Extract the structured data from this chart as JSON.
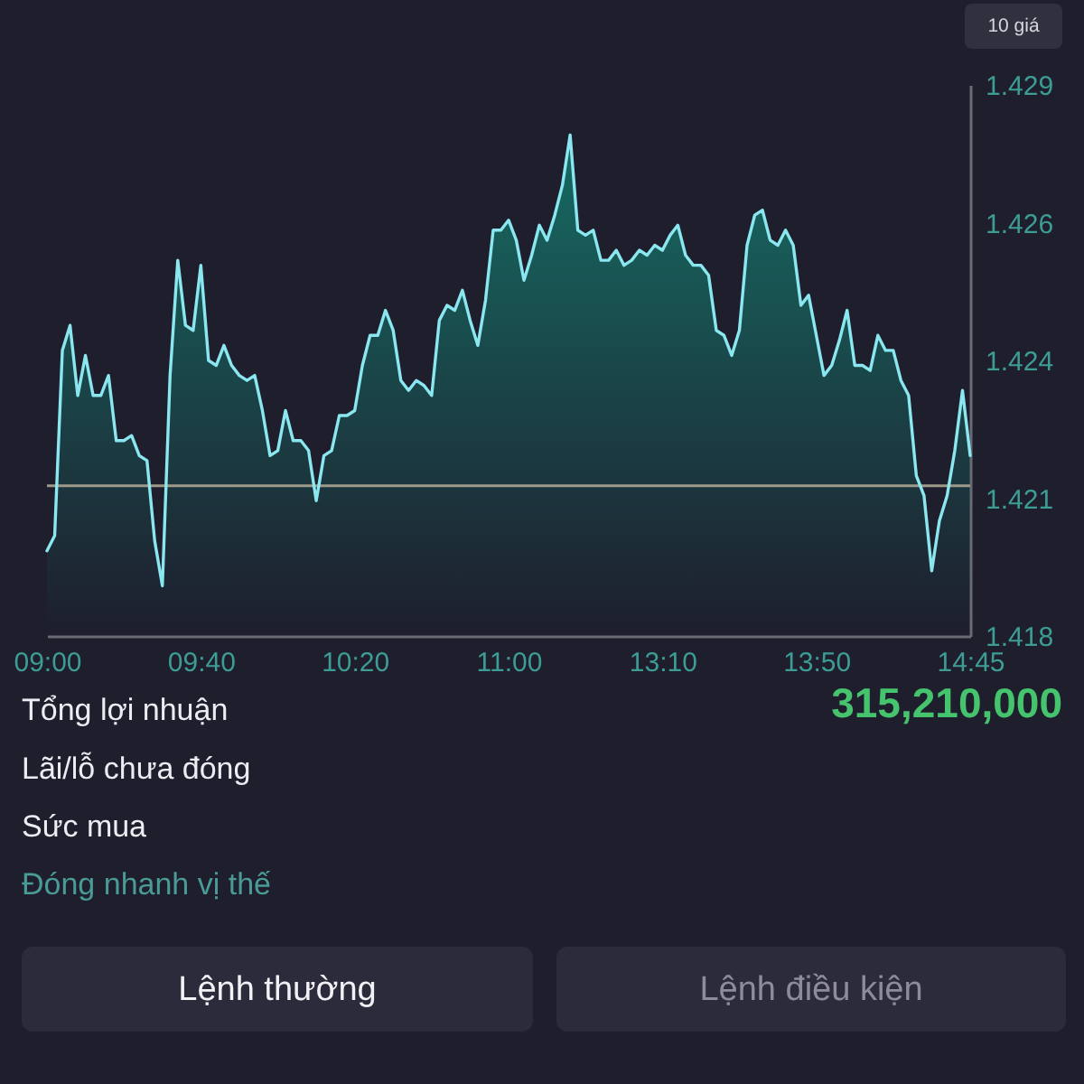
{
  "chart_data": [
    {
      "type": "area",
      "categories": [
        "09:00",
        null,
        null,
        null,
        null,
        null,
        null,
        null,
        null,
        null,
        null,
        null,
        null,
        null,
        null,
        null,
        null,
        null,
        null,
        null,
        "09:40",
        null,
        null,
        null,
        null,
        null,
        null,
        null,
        null,
        null,
        null,
        null,
        null,
        null,
        null,
        null,
        null,
        null,
        null,
        null,
        "10:20",
        null,
        null,
        null,
        null,
        null,
        null,
        null,
        null,
        null,
        null,
        null,
        null,
        null,
        null,
        null,
        null,
        null,
        null,
        null,
        "11:00",
        null,
        null,
        null,
        null,
        null,
        null,
        null,
        null,
        null,
        null,
        null,
        null,
        null,
        null,
        null,
        null,
        null,
        null,
        null,
        "13:10",
        null,
        null,
        null,
        null,
        null,
        null,
        null,
        null,
        null,
        null,
        null,
        null,
        null,
        null,
        null,
        null,
        null,
        null,
        null,
        "13:50",
        null,
        null,
        null,
        null,
        null,
        null,
        null,
        null,
        null,
        null,
        null,
        null,
        null,
        null,
        null,
        null,
        null,
        null,
        null,
        "14:45"
      ],
      "series": [
        {
          "color": "#8ae6ef",
          "values": [
            1.4197,
            1.42,
            1.4237,
            1.4242,
            1.4228,
            1.4236,
            1.4228,
            1.4228,
            1.4232,
            1.4219,
            1.4219,
            1.422,
            1.4216,
            1.4215,
            1.4199,
            1.419,
            1.4232,
            1.4255,
            1.4242,
            1.4241,
            1.4254,
            1.4235,
            1.4234,
            1.4238,
            1.4234,
            1.4232,
            1.4231,
            1.4232,
            1.4225,
            1.4216,
            1.4217,
            1.4225,
            1.4219,
            1.4219,
            1.4217,
            1.4207,
            1.4216,
            1.4217,
            1.4224,
            1.4224,
            1.4225,
            1.4234,
            1.424,
            1.424,
            1.4245,
            1.4241,
            1.4231,
            1.4229,
            1.4231,
            1.423,
            1.4228,
            1.4243,
            1.4246,
            1.4245,
            1.4249,
            1.4243,
            1.4238,
            1.4247,
            1.4261,
            1.4261,
            1.4263,
            1.4259,
            1.4251,
            1.4256,
            1.4262,
            1.4259,
            1.4264,
            1.427,
            1.428,
            1.4261,
            1.426,
            1.4261,
            1.4255,
            1.4255,
            1.4257,
            1.4254,
            1.4255,
            1.4257,
            1.4256,
            1.4258,
            1.4257,
            1.426,
            1.4262,
            1.4256,
            1.4254,
            1.4254,
            1.4252,
            1.4241,
            1.424,
            1.4236,
            1.4241,
            1.4258,
            1.4264,
            1.4265,
            1.4259,
            1.4258,
            1.4261,
            1.4258,
            1.4246,
            1.4248,
            1.424,
            1.4232,
            1.4234,
            1.4239,
            1.4245,
            1.4234,
            1.4234,
            1.4233,
            1.424,
            1.4237,
            1.4237,
            1.4231,
            1.4228,
            1.4212,
            1.4208,
            1.4193,
            1.4203,
            1.4208,
            1.4217,
            1.4229,
            1.4216
          ]
        }
      ],
      "ylim": [
        1.418,
        1.429
      ],
      "yticks": [
        1.418,
        {
          "value": 1.42075,
          "label": "1.421"
        },
        {
          "value": 1.4235,
          "label": "1.424"
        },
        {
          "value": 1.42625,
          "label": "1.426"
        },
        1.429
      ],
      "ref_lines": [
        {
          "axis": "y",
          "value": 1.421,
          "color": "#9e9a8a"
        }
      ],
      "annotations": [
        "10 giá"
      ],
      "grid": false
    },
    {
      "type": "other",
      "annotations": [
        "Tổng lợi nhuận",
        "315,210,000",
        "Lãi/lỗ chưa đóng",
        "Sức mua",
        "Đóng nhanh vị thế",
        "Lệnh thường",
        "Lệnh điều kiện"
      ]
    }
  ]
}
